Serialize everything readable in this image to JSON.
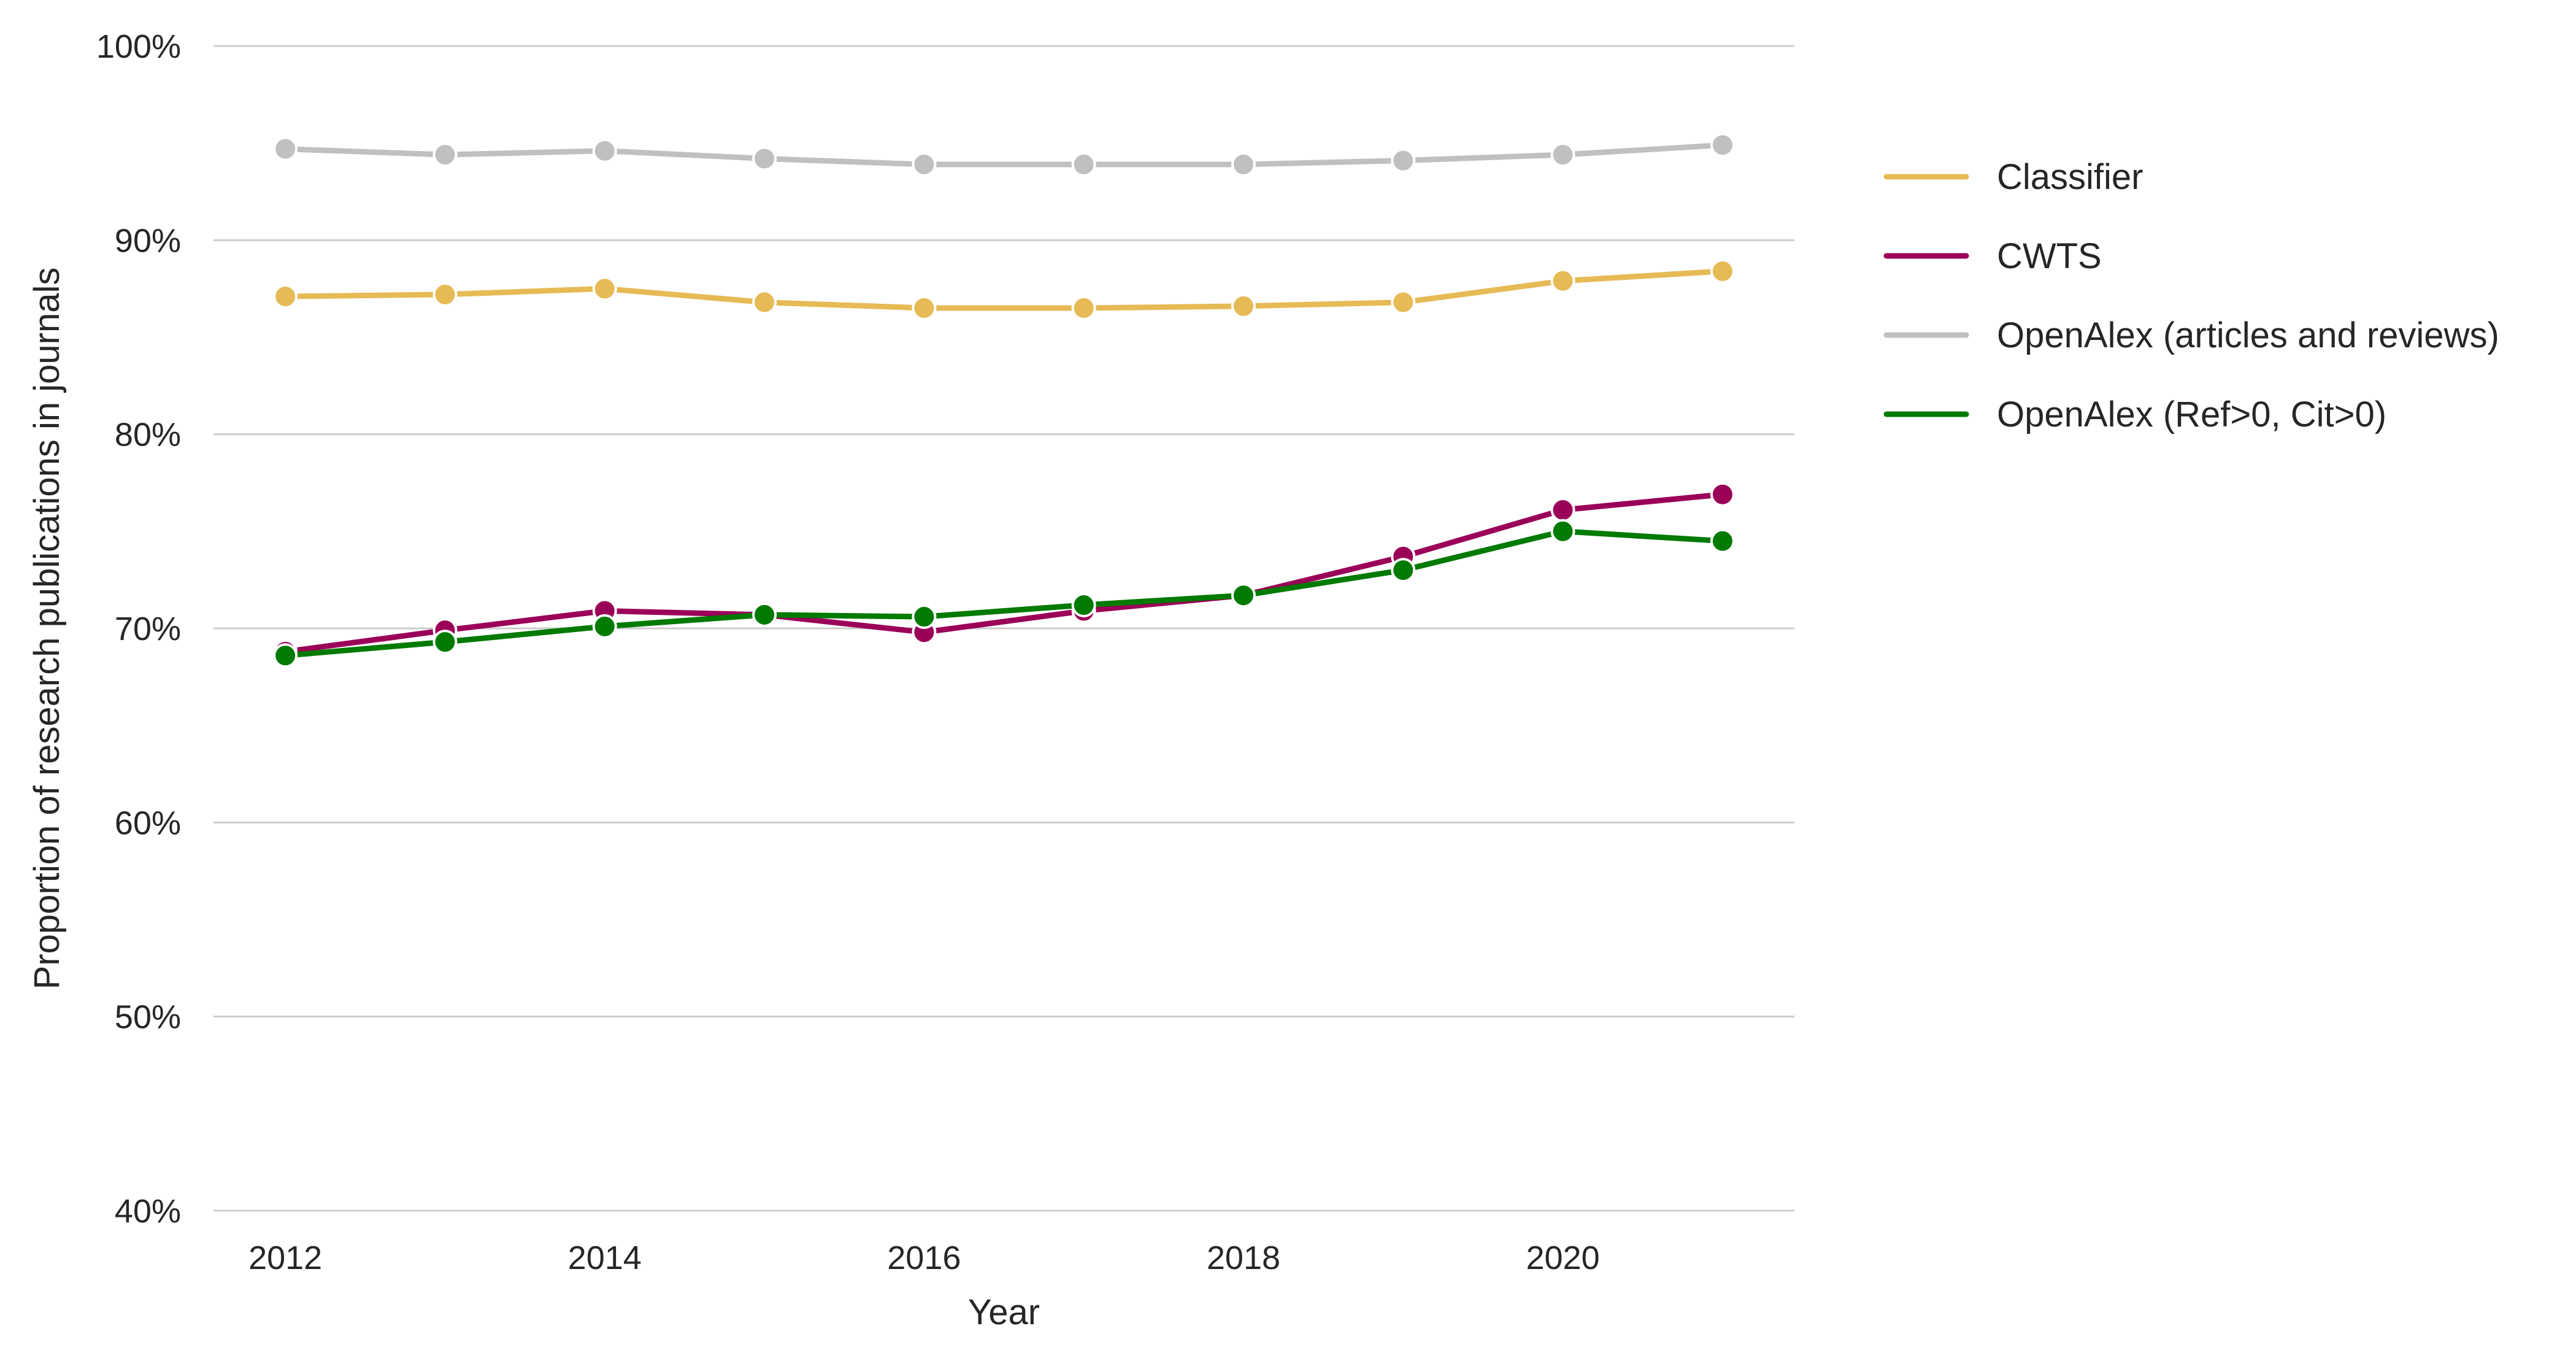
{
  "chart_data": {
    "type": "line",
    "title": "",
    "xlabel": "Year",
    "ylabel": "Proportion of research publications in journals",
    "x": [
      2012,
      2013,
      2014,
      2015,
      2016,
      2017,
      2018,
      2019,
      2020,
      2021
    ],
    "xticks": [
      2012,
      2014,
      2016,
      2018,
      2020
    ],
    "xtick_labels": [
      "2012",
      "2014",
      "2016",
      "2018",
      "2020"
    ],
    "xlim": [
      2011.55,
      2021.45
    ],
    "ylim": [
      40,
      100
    ],
    "yticks": [
      40,
      50,
      60,
      70,
      80,
      90,
      100
    ],
    "ytick_labels": [
      "40%",
      "50%",
      "60%",
      "70%",
      "80%",
      "90%",
      "100%"
    ],
    "grid": "horizontal",
    "legend_position": "right",
    "series": [
      {
        "name": "Classifier",
        "color": "#E6BA55",
        "values": [
          87.1,
          87.2,
          87.5,
          86.8,
          86.5,
          86.5,
          86.6,
          86.8,
          87.9,
          88.4
        ]
      },
      {
        "name": "CWTS",
        "color": "#9B0059",
        "values": [
          68.8,
          69.9,
          70.9,
          70.7,
          69.8,
          70.9,
          71.7,
          73.7,
          76.1,
          76.9
        ]
      },
      {
        "name": "OpenAlex (articles and reviews)",
        "color": "#C0C0C0",
        "values": [
          94.7,
          94.4,
          94.6,
          94.2,
          93.9,
          93.9,
          93.9,
          94.1,
          94.4,
          94.9
        ]
      },
      {
        "name": "OpenAlex (Ref>0, Cit>0)",
        "color": "#007A00",
        "values": [
          68.6,
          69.3,
          70.1,
          70.7,
          70.6,
          71.2,
          71.7,
          73.0,
          75.0,
          74.5
        ]
      }
    ]
  }
}
